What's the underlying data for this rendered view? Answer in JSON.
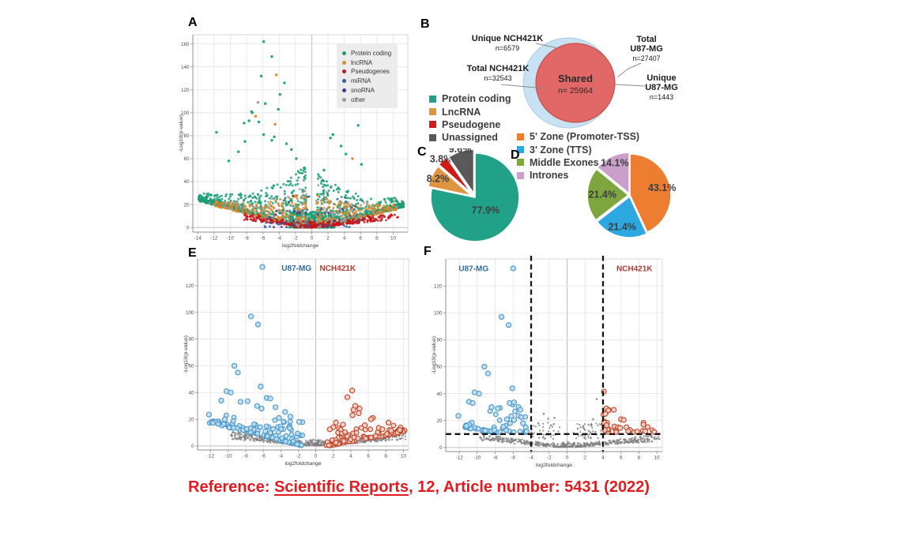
{
  "reference": {
    "prefix": "Reference: ",
    "journal": "Scientific Reports",
    "suffix": ", 12, Article number: 5431 (2022)",
    "color": "#e31b20"
  },
  "chart_data": [
    {
      "panel": "A",
      "type": "scatter",
      "subtype": "volcano",
      "xlabel": "log2foldchange",
      "ylabel": "-Log10(p-value)",
      "xticks": [
        -14,
        -12,
        -10,
        -8,
        -6,
        -4,
        -2,
        0,
        2,
        4,
        6,
        8,
        10
      ],
      "yticks": [
        0,
        20,
        40,
        60,
        80,
        100,
        120,
        140,
        160
      ],
      "xlim": [
        -14.6,
        11.8
      ],
      "ylim": [
        -4,
        168
      ],
      "grid": true,
      "legend_position": "top-right",
      "legend": [
        {
          "label": "Protein coding",
          "color": "#1b9e77"
        },
        {
          "label": "lncRNA",
          "color": "#d8882a"
        },
        {
          "label": "Pseudogenes",
          "color": "#c4161c"
        },
        {
          "label": "miRNA",
          "color": "#2b5f9e"
        },
        {
          "label": "snoRNA",
          "color": "#533091"
        },
        {
          "label": "other",
          "color": "#9a9a9a"
        }
      ],
      "classes": [
        {
          "name": "Protein coding",
          "color": "#1b9e77",
          "n": 1900
        },
        {
          "name": "lncRNA",
          "color": "#d8882a",
          "n": 480
        },
        {
          "name": "Pseudogenes",
          "color": "#c4161c",
          "n": 430
        },
        {
          "name": "miRNA",
          "color": "#2b5f9e",
          "n": 45
        },
        {
          "name": "snoRNA",
          "color": "#533091",
          "n": 22
        },
        {
          "name": "other",
          "color": "#9a9a9a",
          "n": 120
        }
      ],
      "outliers": [
        [
          -5.9,
          162,
          0
        ],
        [
          -4.9,
          149,
          0
        ],
        [
          -4.35,
          133,
          1
        ],
        [
          -6.2,
          132,
          0
        ],
        [
          -3.35,
          126,
          0
        ],
        [
          -3.9,
          116,
          0
        ],
        [
          -6.6,
          109,
          5
        ],
        [
          -5.7,
          108,
          0
        ],
        [
          -4.1,
          103,
          0
        ],
        [
          -7.4,
          101,
          0
        ],
        [
          -7.3,
          100,
          0
        ],
        [
          -6.9,
          97,
          1
        ],
        [
          -7.7,
          93,
          0
        ],
        [
          -6.5,
          92,
          0
        ],
        [
          -8.3,
          91,
          0
        ],
        [
          -4.5,
          90,
          1
        ],
        [
          5.7,
          89,
          0
        ],
        [
          -11.7,
          83,
          0
        ],
        [
          -5.9,
          81,
          0
        ],
        [
          2.6,
          81,
          0
        ],
        [
          -4.6,
          79,
          0
        ],
        [
          2.3,
          78,
          0
        ],
        [
          -4.9,
          76,
          0
        ],
        [
          -8.2,
          75,
          0
        ],
        [
          -3.1,
          73,
          0
        ],
        [
          3.6,
          71,
          0
        ],
        [
          -2.5,
          68,
          0
        ],
        [
          -9.0,
          66,
          0
        ],
        [
          4.2,
          64,
          0
        ],
        [
          -1.9,
          60,
          0
        ],
        [
          5.0,
          60,
          1
        ],
        [
          -10.2,
          58,
          0
        ],
        [
          6.1,
          55,
          0
        ],
        [
          -0.9,
          52,
          0
        ],
        [
          1.5,
          50,
          0
        ]
      ],
      "seed": 11
    },
    {
      "panel": "B",
      "type": "venn",
      "sets": [
        {
          "name": "Total NCH421K",
          "n": 32543,
          "unique_label": "Unique NCH421K",
          "unique_n": 6579,
          "fill": "#c9e2f3",
          "stroke": "#a9cbe5"
        },
        {
          "name": "Total U87-MG",
          "n": 27407,
          "unique_label": "Unique U87-MG",
          "unique_n": 1443,
          "fill": "#e26868",
          "stroke": "#c05050"
        }
      ],
      "shared": {
        "label": "Shared",
        "n": 25964
      },
      "display": {
        "unique_nch_title": "Unique NCH421K",
        "unique_nch_n": "n=6579",
        "total_nch_title": "Total NCH421K",
        "total_nch_n": "n=32543",
        "shared_title": "Shared",
        "shared_n": "n= 25964",
        "total_u87_l1": "Total",
        "total_u87_l2": "U87-MG",
        "total_u87_n": "n=27407",
        "unique_u87_l1": "Unique",
        "unique_u87_l2": "U87-MG",
        "unique_u87_n": "n=1443"
      }
    },
    {
      "panel": "C",
      "type": "pie",
      "slices": [
        {
          "label": "Protein coding",
          "pct": 77.9,
          "text": "77.9%",
          "color": "#21a288",
          "offset": 0,
          "label_f": 0.38
        },
        {
          "label": "LncRNA",
          "pct": 8.2,
          "text": "8.2%",
          "color": "#df9540",
          "offset": 5,
          "label_f": 0.85
        },
        {
          "label": "Pseudogene",
          "pct": 3.8,
          "text": "3.8%",
          "color": "#d11a1a",
          "offset": 6,
          "label_f": 1.05
        },
        {
          "label": "Unassigned",
          "pct": 9.6,
          "text": "9.6%",
          "color": "#595959",
          "offset": 5,
          "label_f": 1.05
        }
      ],
      "legend": [
        {
          "label": "Protein coding",
          "color": "#21a288"
        },
        {
          "label": "LncRNA",
          "color": "#df9540"
        },
        {
          "label": "Pseudogene",
          "color": "#d11a1a"
        },
        {
          "label": "Unassigned",
          "color": "#595959"
        }
      ]
    },
    {
      "panel": "D",
      "type": "pie",
      "slices": [
        {
          "label": "5' Zone (Promoter-TSS)",
          "pct": 43.1,
          "text": "43.1%",
          "color": "#ed7d31",
          "offset": 0,
          "label_f": 0.8
        },
        {
          "label": "3' Zone (TTS)",
          "pct": 21.4,
          "text": "21.4%",
          "color": "#2ea8e0",
          "offset": 2,
          "label_f": 0.76
        },
        {
          "label": "Middle Exones",
          "pct": 21.4,
          "text": "21.4%",
          "color": "#7da73e",
          "offset": 2,
          "label_f": 0.63
        },
        {
          "label": "Intrones",
          "pct": 14.1,
          "text": "14.1%",
          "color": "#c9a0c9",
          "offset": 2,
          "label_f": 0.82
        }
      ],
      "legend": [
        {
          "label": "5' Zone (Promoter-TSS)",
          "color": "#ed7d31"
        },
        {
          "label": "3' Zone (TTS)",
          "color": "#2ea8e0"
        },
        {
          "label": "Middle Exones",
          "color": "#7da73e"
        },
        {
          "label": "Intrones",
          "color": "#c9a0c9"
        }
      ]
    },
    {
      "panel": "E",
      "type": "scatter",
      "subtype": "volcano",
      "xlabel": "log2foldchange",
      "ylabel": "-Log10(p-value)",
      "xticks": [
        -12,
        -10,
        -8,
        -6,
        -4,
        -2,
        0,
        2,
        4,
        6,
        8,
        10
      ],
      "yticks": [
        0,
        20,
        40,
        60,
        80,
        100,
        120
      ],
      "xlim": [
        -13.5,
        10.6
      ],
      "ylim": [
        -3,
        140
      ],
      "grid": true,
      "cell_labels": [
        {
          "text": "U87-MG",
          "color": "#2e6da4",
          "x": -2.2,
          "y": 131
        },
        {
          "text": "NCH421K",
          "color": "#b23b32",
          "x": 2.5,
          "y": 131
        }
      ],
      "series": [
        {
          "name": "U87-MG",
          "stroke": "#4a98cb",
          "fill": "#bcdcf0",
          "n": 120
        },
        {
          "name": "NCH421K",
          "stroke": "#bf4328",
          "fill": "#eecfc4",
          "n": 100
        },
        {
          "name": "not significant",
          "color": "#7f7f7f",
          "n": 640
        }
      ],
      "outliers_blue": [
        [
          -6.1,
          134
        ],
        [
          -7.4,
          97
        ],
        [
          -6.6,
          91
        ],
        [
          -9.3,
          60
        ],
        [
          -8.9,
          55
        ],
        [
          -6.3,
          44.5
        ],
        [
          -10.2,
          41
        ],
        [
          -9.7,
          40
        ],
        [
          -12.2,
          23.5
        ],
        [
          -10.8,
          34
        ],
        [
          -5.6,
          36
        ],
        [
          -5.2,
          35.5
        ],
        [
          -7.8,
          33.5
        ],
        [
          -8.6,
          33
        ],
        [
          -6.7,
          30
        ],
        [
          -4.6,
          29
        ],
        [
          -6.2,
          28
        ],
        [
          -3.5,
          25.5
        ],
        [
          -10.4,
          20
        ],
        [
          -2.9,
          22
        ],
        [
          -4.2,
          21
        ],
        [
          -1.9,
          18
        ]
      ],
      "outliers_red": [
        [
          4.15,
          41.5
        ],
        [
          3.6,
          36.5
        ],
        [
          4.5,
          30
        ],
        [
          5.0,
          28
        ],
        [
          4.3,
          27
        ],
        [
          4.9,
          24.5
        ],
        [
          4.2,
          23
        ],
        [
          6.5,
          21
        ],
        [
          6.3,
          20
        ],
        [
          2.3,
          17.5
        ],
        [
          3.1,
          16
        ],
        [
          8.3,
          17.5
        ],
        [
          7.2,
          13.5
        ],
        [
          9.6,
          12
        ],
        [
          8.6,
          11.5
        ],
        [
          2.0,
          14
        ],
        [
          1.6,
          12.5
        ],
        [
          5.6,
          15.5
        ],
        [
          7.6,
          12.5
        ]
      ],
      "seed": 23
    },
    {
      "panel": "F",
      "type": "scatter",
      "subtype": "volcano-thresholded",
      "xlabel": "log2foldchange",
      "ylabel": "-Log10(p-value)",
      "xticks": [
        -12,
        -10,
        -8,
        -6,
        -4,
        -2,
        0,
        2,
        4,
        6,
        8,
        10
      ],
      "yticks": [
        0,
        20,
        40,
        60,
        80,
        100,
        120
      ],
      "xlim": [
        -13.5,
        10.6
      ],
      "ylim": [
        -3,
        140
      ],
      "grid": true,
      "thresholds": {
        "x": [
          -4,
          4
        ],
        "y": 10
      },
      "cell_labels": [
        {
          "text": "U87-MG",
          "color": "#2e6da4",
          "x": -10.4,
          "y": 131
        },
        {
          "text": "NCH421K",
          "color": "#b23b32",
          "x": 7.5,
          "y": 131
        }
      ],
      "series": [
        {
          "name": "U87-MG",
          "stroke": "#4a98cb",
          "fill": "#bcdcf0",
          "n": 48
        },
        {
          "name": "NCH421K",
          "stroke": "#bf4328",
          "fill": "#eecfc4",
          "n": 24
        },
        {
          "name": "not significant",
          "color": "#7f7f7f",
          "n": 620
        }
      ],
      "outliers_blue": [
        [
          -6.0,
          133
        ],
        [
          -7.3,
          97
        ],
        [
          -6.5,
          91
        ],
        [
          -9.2,
          60
        ],
        [
          -8.8,
          55
        ],
        [
          -6.1,
          44
        ],
        [
          -10.3,
          41
        ],
        [
          -9.8,
          40
        ],
        [
          -12.1,
          23.5
        ],
        [
          -10.9,
          34
        ],
        [
          -10.5,
          33
        ],
        [
          -8.4,
          30
        ],
        [
          -7.7,
          29
        ],
        [
          -6.4,
          33
        ],
        [
          -5.9,
          33.5
        ],
        [
          -5.4,
          30
        ],
        [
          -5.2,
          28
        ],
        [
          -6.7,
          21
        ],
        [
          -5.9,
          20.5
        ],
        [
          -4.9,
          18
        ],
        [
          -7.1,
          15.5
        ],
        [
          -8.1,
          13
        ],
        [
          -9.1,
          12.5
        ],
        [
          -10.6,
          18.5
        ],
        [
          -10.9,
          17
        ],
        [
          -11.2,
          16
        ],
        [
          -4.6,
          15
        ],
        [
          -4.5,
          12
        ]
      ],
      "outliers_red": [
        [
          4.1,
          41.5
        ],
        [
          4.35,
          29
        ],
        [
          4.6,
          27.5
        ],
        [
          4.25,
          25
        ],
        [
          5.2,
          28
        ],
        [
          4.15,
          18.5
        ],
        [
          4.3,
          15
        ],
        [
          4.5,
          13.5
        ],
        [
          6.0,
          21
        ],
        [
          6.3,
          20.5
        ],
        [
          6.6,
          15
        ],
        [
          7.0,
          13
        ],
        [
          6.8,
          12
        ],
        [
          8.5,
          17
        ],
        [
          8.7,
          12
        ],
        [
          9.7,
          11.5
        ],
        [
          5.9,
          14.5
        ],
        [
          7.8,
          11.8
        ],
        [
          4.2,
          13
        ],
        [
          4.4,
          16.5
        ]
      ],
      "outliers_gray": [
        [
          3.3,
          36
        ],
        [
          -2.6,
          25
        ],
        [
          -2.1,
          21.5
        ],
        [
          -1.4,
          22
        ],
        [
          2.4,
          17
        ],
        [
          1.8,
          16
        ],
        [
          -3.2,
          18
        ],
        [
          2.9,
          21
        ],
        [
          -1.8,
          16.5
        ],
        [
          1.2,
          14
        ]
      ],
      "seed": 31
    }
  ]
}
